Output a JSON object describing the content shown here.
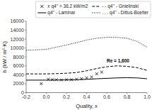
{
  "chart_data": {
    "type": "line",
    "xlabel": "Quality, x",
    "ylabel": "h (kW / m²·K)",
    "xlim": [
      -0.2,
      1.0
    ],
    "ylim": [
      0,
      16000
    ],
    "xticks": [
      -0.2,
      {
        "value": 0.0,
        "label": "0.0"
      },
      0.2,
      0.4,
      0.6,
      0.8,
      {
        "value": 1.0,
        "label": "1.0"
      }
    ],
    "yticks": [
      0,
      2000,
      4000,
      6000,
      8000,
      10000,
      12000,
      14000,
      16000
    ],
    "grid": false,
    "legend": "upper right",
    "annotations": [
      {
        "text": "Re = 1,600",
        "x": 0.6,
        "y": 6800
      }
    ],
    "series": [
      {
        "name": "x   q4’’ = 36.2 kW/m2",
        "type": "scatter",
        "marker": "x",
        "color": "#000000",
        "x": [
          -0.05,
          0.02,
          0.06,
          0.1,
          0.15,
          0.2,
          0.25,
          0.3,
          0.35,
          0.4,
          0.45,
          0.5,
          0.55
        ],
        "values": [
          2000,
          3000,
          2900,
          2900,
          2850,
          2900,
          2900,
          3000,
          3100,
          3300,
          3500,
          4200,
          4600
        ]
      },
      {
        "name": "q4’’ - Laminar",
        "type": "line",
        "line_style": "solid",
        "color": "#000000",
        "x": [
          -0.2,
          0.0,
          0.1,
          0.2,
          0.3,
          0.4,
          0.5,
          0.6,
          0.7,
          0.8,
          0.9,
          1.0
        ],
        "values": [
          2800,
          2800,
          2820,
          2850,
          2900,
          2980,
          3100,
          3200,
          3300,
          3350,
          3300,
          3100
        ]
      },
      {
        "name": "- -  q4’’ - Gnielinski",
        "type": "line",
        "line_style": "dashed",
        "color": "#000000",
        "x": [
          -0.2,
          0.0,
          0.1,
          0.2,
          0.3,
          0.4,
          0.5,
          0.6,
          0.7,
          0.8,
          0.9,
          1.0
        ],
        "values": [
          4200,
          4200,
          4250,
          4350,
          4500,
          4900,
          5400,
          5800,
          6000,
          5900,
          5600,
          5000
        ]
      },
      {
        "name": ". . . q4’’ - Dittus-Boelter",
        "type": "line",
        "line_style": "dotted",
        "color": "#000000",
        "x": [
          -0.2,
          0.0,
          0.1,
          0.2,
          0.3,
          0.4,
          0.5,
          0.6,
          0.7,
          0.8,
          0.9,
          1.0
        ],
        "values": [
          9500,
          9700,
          10200,
          10700,
          11200,
          11800,
          12200,
          12400,
          12400,
          12200,
          11500,
          10200
        ]
      }
    ]
  }
}
